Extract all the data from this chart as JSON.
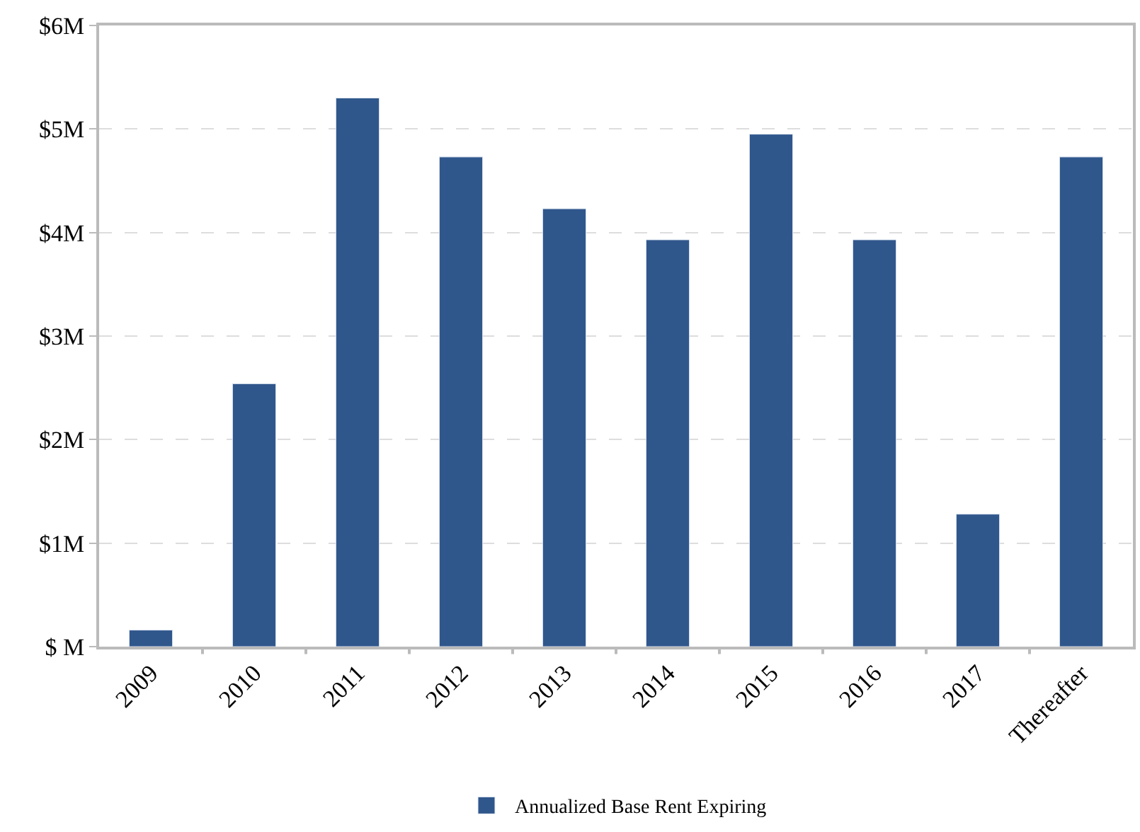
{
  "chart_data": {
    "type": "bar",
    "categories": [
      "2009",
      "2010",
      "2011",
      "2012",
      "2013",
      "2014",
      "2015",
      "2016",
      "2017",
      "Thereafter"
    ],
    "series": [
      {
        "name": "Annualized Base Rent Expiring",
        "color": "#30578c",
        "values": [
          0.16,
          2.54,
          5.3,
          4.73,
          4.23,
          3.93,
          4.95,
          3.93,
          1.28,
          4.73
        ]
      }
    ],
    "ylim": [
      0,
      6
    ],
    "yticks": [
      {
        "value": 0,
        "label": "$ M"
      },
      {
        "value": 1,
        "label": "$1M"
      },
      {
        "value": 2,
        "label": "$2M"
      },
      {
        "value": 3,
        "label": "$3M"
      },
      {
        "value": 4,
        "label": "$4M"
      },
      {
        "value": 5,
        "label": "$5M"
      },
      {
        "value": 6,
        "label": "$6M"
      }
    ],
    "grid": "y",
    "legend": "bottom"
  }
}
